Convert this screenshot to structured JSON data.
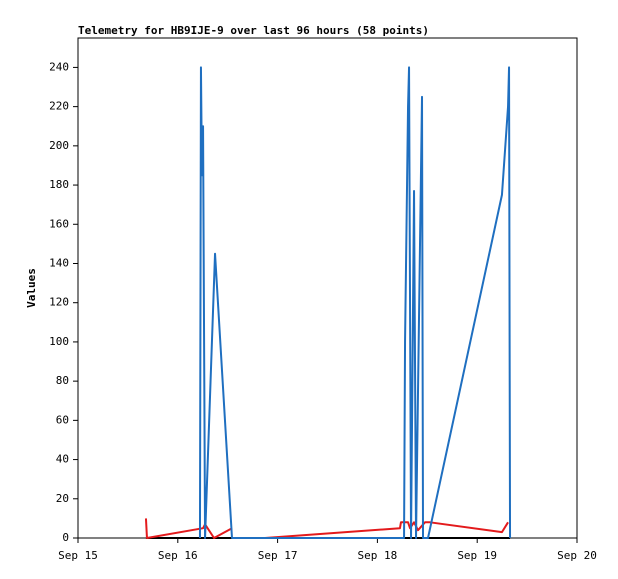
{
  "chart_data": {
    "type": "line",
    "title": "Telemetry for HB9IJE-9 over last 96 hours (58 points)",
    "y_label": "Values",
    "xlim": [
      15,
      20
    ],
    "xticks": [
      {
        "value": 15,
        "label": "Sep 15"
      },
      {
        "value": 16,
        "label": "Sep 16"
      },
      {
        "value": 17,
        "label": "Sep 17"
      },
      {
        "value": 18,
        "label": "Sep 18"
      },
      {
        "value": 19,
        "label": "Sep 19"
      },
      {
        "value": 20,
        "label": "Sep 20"
      }
    ],
    "ylim": [
      0,
      255
    ],
    "yticks": [
      0,
      20,
      40,
      60,
      80,
      100,
      120,
      140,
      160,
      180,
      200,
      220,
      240
    ],
    "series": [
      {
        "color": "#000000",
        "x": [
          15.681,
          19.329
        ],
        "values": [
          0,
          0
        ]
      },
      {
        "color": "#e31a1c",
        "x": [
          15.681,
          15.691,
          16.253,
          16.273,
          16.363,
          16.543,
          16.55,
          16.874,
          18.226,
          18.236,
          18.307,
          18.327,
          18.367,
          18.407,
          18.477,
          18.527,
          19.248,
          19.309
        ],
        "values": [
          10,
          0,
          5,
          7,
          0,
          5,
          null,
          0,
          5,
          8,
          8,
          5,
          8,
          4,
          8,
          8,
          3,
          8
        ]
      },
      {
        "color": "#1f6fc0",
        "x": [
          16.222,
          16.232,
          16.242,
          16.253,
          16.273,
          16.373,
          16.543,
          18.267,
          18.277,
          18.307,
          18.317,
          18.337,
          18.367,
          18.387,
          18.447,
          18.457,
          18.507,
          19.248,
          19.309,
          19.319,
          19.329
        ],
        "values": [
          0,
          240,
          185,
          210,
          0,
          145,
          0,
          0,
          100,
          220,
          240,
          0,
          177,
          0,
          225,
          0,
          0,
          175,
          220,
          240,
          0
        ]
      }
    ]
  }
}
